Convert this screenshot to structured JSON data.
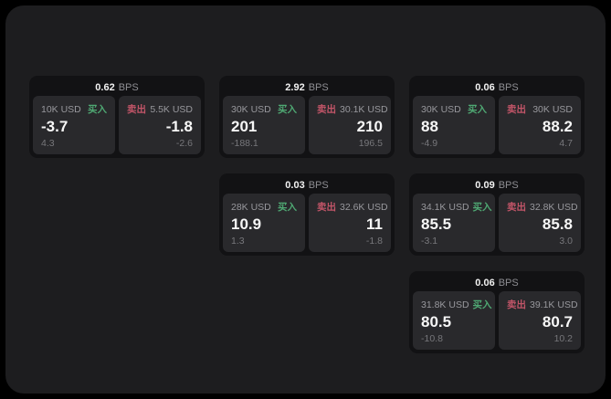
{
  "labels": {
    "bps_unit": "BPS",
    "buy": "买入",
    "sell": "卖出"
  },
  "colors": {
    "page_background": "#000000",
    "panel_background": "#1d1d1f",
    "card_background": "#121214",
    "tile_background": "#29292c",
    "text_primary": "#f7f7f7",
    "text_secondary": "#98989d",
    "text_muted": "#77777b",
    "buy_green": "#4fa873",
    "sell_red": "#c25568"
  },
  "cards": [
    {
      "row": 1,
      "col": 1,
      "bps": "0.62",
      "buy": {
        "size": "10K USD",
        "value": "-3.7",
        "delta": "4.3"
      },
      "sell": {
        "size": "5.5K USD",
        "value": "-1.8",
        "delta": "-2.6"
      }
    },
    {
      "row": 1,
      "col": 2,
      "bps": "2.92",
      "buy": {
        "size": "30K USD",
        "value": "201",
        "delta": "-188.1"
      },
      "sell": {
        "size": "30.1K USD",
        "value": "210",
        "delta": "196.5"
      }
    },
    {
      "row": 1,
      "col": 3,
      "bps": "0.06",
      "buy": {
        "size": "30K USD",
        "value": "88",
        "delta": "-4.9"
      },
      "sell": {
        "size": "30K USD",
        "value": "88.2",
        "delta": "4.7"
      }
    },
    {
      "row": 2,
      "col": 2,
      "bps": "0.03",
      "buy": {
        "size": "28K USD",
        "value": "10.9",
        "delta": "1.3"
      },
      "sell": {
        "size": "32.6K USD",
        "value": "11",
        "delta": "-1.8"
      }
    },
    {
      "row": 2,
      "col": 3,
      "bps": "0.09",
      "buy": {
        "size": "34.1K USD",
        "value": "85.5",
        "delta": "-3.1"
      },
      "sell": {
        "size": "32.8K USD",
        "value": "85.8",
        "delta": "3.0"
      }
    },
    {
      "row": 3,
      "col": 3,
      "bps": "0.06",
      "buy": {
        "size": "31.8K USD",
        "value": "80.5",
        "delta": "-10.8"
      },
      "sell": {
        "size": "39.1K USD",
        "value": "80.7",
        "delta": "10.2"
      }
    }
  ]
}
